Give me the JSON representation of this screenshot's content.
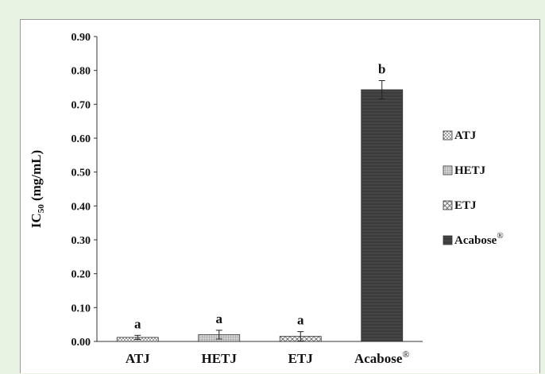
{
  "chart_data": {
    "type": "bar",
    "title": "",
    "xlabel": "",
    "ylabel": "IC",
    "ylabel_subscript": "50",
    "ylabel_unit": " (mg/mL)",
    "ylim": [
      0,
      0.9
    ],
    "yticks": [
      "0.00",
      "0.10",
      "0.20",
      "0.30",
      "0.40",
      "0.50",
      "0.60",
      "0.70",
      "0.80",
      "0.90"
    ],
    "categories": [
      "ATJ",
      "HETJ",
      "ETJ",
      "Acabose"
    ],
    "category_suffix": [
      "",
      "",
      "",
      "®"
    ],
    "values": [
      0.012,
      0.02,
      0.015,
      0.743
    ],
    "errors": [
      0.006,
      0.013,
      0.014,
      0.027
    ],
    "significance_letters": [
      "a",
      "a",
      "a",
      "b"
    ],
    "legend": [
      "ATJ",
      "HETJ",
      "ETJ",
      "Acabose"
    ],
    "legend_suffix": [
      "",
      "",
      "",
      "®"
    ],
    "legend_position": "right",
    "grid": false,
    "fills": [
      "dots",
      "fine-grid",
      "crosshatch",
      "dark"
    ]
  },
  "colors": {
    "background": "#e8f3e4",
    "plot_background": "#ffffff",
    "dark_bar": "#3c3c3c",
    "text": "#111111"
  }
}
